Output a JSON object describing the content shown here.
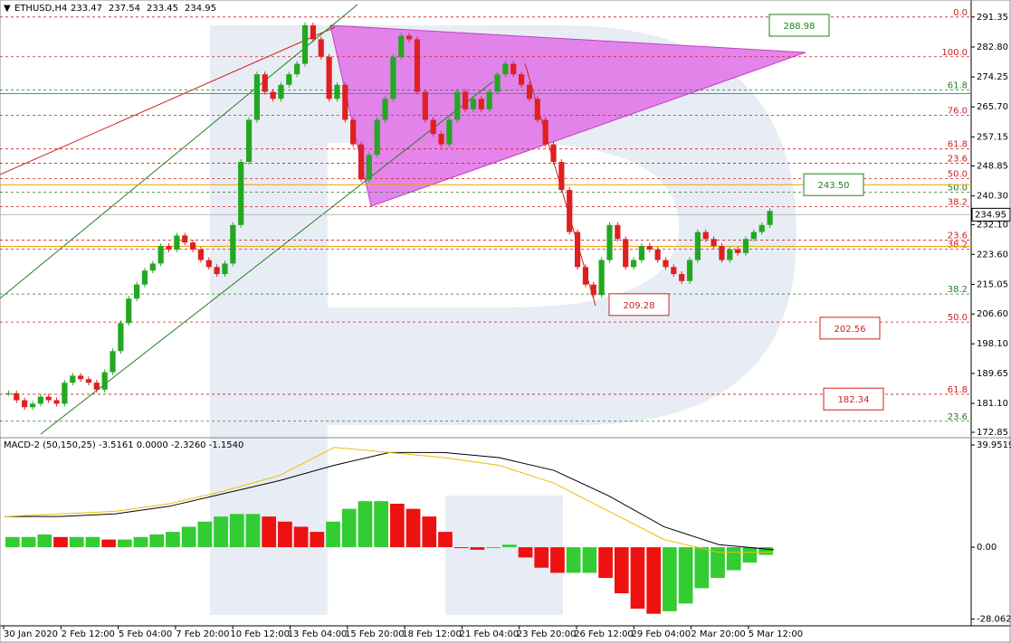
{
  "chart_data": {
    "type": "candlestick",
    "title": "ETHUSD,H4",
    "ohlc": [
      233.47,
      237.54,
      233.45,
      234.95
    ],
    "up_color": "#22a822",
    "down_color": "#e02020",
    "close": [
      184,
      182,
      180,
      181,
      183,
      182,
      181,
      187,
      189,
      188,
      187,
      185,
      190,
      196,
      204,
      211,
      215,
      219,
      221,
      226,
      225,
      229,
      227,
      225,
      222,
      220,
      218,
      221,
      232,
      250,
      262,
      275,
      270,
      268,
      272,
      275,
      278,
      289,
      285,
      280,
      268,
      272,
      262,
      255,
      245,
      252,
      262,
      268,
      280,
      286,
      285,
      270,
      262,
      258,
      255,
      262,
      270,
      265,
      268,
      265,
      270,
      275,
      278,
      275,
      272,
      268,
      262,
      255,
      250,
      242,
      230,
      220,
      215,
      212,
      222,
      232,
      228,
      220,
      222,
      226,
      225,
      222,
      220,
      218,
      216,
      222,
      230,
      228,
      226,
      222,
      225,
      224,
      228,
      230,
      232,
      236
    ],
    "ylim": [
      171.3,
      296.2
    ],
    "yticks": [
      {
        "value": 291.35,
        "label": "291.35"
      },
      {
        "value": 282.8,
        "label": "282.80"
      },
      {
        "value": 274.25,
        "label": "274.25"
      },
      {
        "value": 265.7,
        "label": "265.70"
      },
      {
        "value": 257.15,
        "label": "257.15"
      },
      {
        "value": 248.85,
        "label": "248.85"
      },
      {
        "value": 240.3,
        "label": "240.30"
      },
      {
        "value": 232.1,
        "label": "232.10"
      },
      {
        "value": 223.6,
        "label": "223.60"
      },
      {
        "value": 215.05,
        "label": "215.05"
      },
      {
        "value": 206.6,
        "label": "206.60"
      },
      {
        "value": 198.1,
        "label": "198.10"
      },
      {
        "value": 189.65,
        "label": "189.65"
      },
      {
        "value": 181.1,
        "label": "181.10"
      },
      {
        "value": 172.85,
        "label": "172.85"
      }
    ],
    "x_labels": [
      "30 Jan 2020",
      "2 Feb 12:00",
      "5 Feb 04:00",
      "7 Feb 20:00",
      "10 Feb 12:00",
      "13 Feb 04:00",
      "15 Feb 20:00",
      "18 Feb 12:00",
      "21 Feb 04:00",
      "23 Feb 20:00",
      "26 Feb 12:00",
      "29 Feb 04:00",
      "2 Mar 20:00",
      "5 Mar 12:00"
    ],
    "fib_levels": [
      {
        "label": "0.0",
        "price": 291.35,
        "color": "#d02020"
      },
      {
        "label": "100.0",
        "price": 280.0,
        "color": "#d02020"
      },
      {
        "label": "61.8",
        "price": 270.5,
        "color": "#208020"
      },
      {
        "label": "76.0",
        "price": 263.3,
        "color": "#d02020"
      },
      {
        "label": "61.8",
        "price": 253.7,
        "color": "#d02020"
      },
      {
        "label": "23.6",
        "price": 249.6,
        "color": "#d02020"
      },
      {
        "label": "50.0",
        "price": 245.2,
        "color": "#d02020"
      },
      {
        "label": "50.0",
        "price": 241.4,
        "color": "#208020"
      },
      {
        "label": "38.2",
        "price": 237.2,
        "color": "#d02020"
      },
      {
        "label": "23.6",
        "price": 227.7,
        "color": "#d02020"
      },
      {
        "label": "38.2",
        "price": 225.1,
        "color": "#d02020"
      },
      {
        "label": "38.2",
        "price": 212.3,
        "color": "#208020"
      },
      {
        "label": "50.0",
        "price": 204.3,
        "color": "#d02020"
      },
      {
        "label": "61.8",
        "price": 183.7,
        "color": "#d02020"
      },
      {
        "label": "23.6",
        "price": 176.0,
        "color": "#208020"
      }
    ],
    "targets": [
      {
        "label": "288.98",
        "value": 288.98,
        "color": "#208020"
      },
      {
        "label": "243.50",
        "value": 243.5,
        "color": "#208020"
      },
      {
        "label": "209.28",
        "value": 209.28,
        "color": "#d02020"
      },
      {
        "label": "202.56",
        "value": 202.56,
        "color": "#d02020"
      },
      {
        "label": "182.34",
        "value": 182.34,
        "color": "#d02020"
      }
    ],
    "lines": [
      {
        "price": 269.5,
        "color": "#20a0c0"
      },
      {
        "price": 243.5,
        "color": "#f0a000"
      },
      {
        "price": 225.9,
        "color": "#f0a000"
      },
      {
        "price": 234.95,
        "color": "#bbbbbb"
      }
    ],
    "current_price": {
      "value": 234.95,
      "label": "234.95"
    },
    "macd": {
      "title": "MACD-2 (50,150,25) -3.5161 0.0000 -2.3260 -1.1540",
      "ylim": [
        -30.7,
        42.78
      ],
      "yticks": [
        {
          "value": 39.9519,
          "label": "39.9519"
        },
        {
          "value": 0,
          "label": "0.00"
        },
        {
          "value": -28.0622,
          "label": "-28.0622"
        }
      ],
      "histogram": [
        4,
        4,
        5,
        4,
        4,
        4,
        3,
        3,
        4,
        5,
        6,
        8,
        10,
        12,
        13,
        13,
        12,
        10,
        8,
        6,
        10,
        15,
        18,
        18,
        17,
        15,
        12,
        6,
        0,
        -1,
        0,
        1,
        -4,
        -8,
        -10,
        -10,
        -10,
        -12,
        -18,
        -24,
        -26,
        -25,
        -22,
        -16,
        -12,
        -9,
        -6,
        -3
      ],
      "series": [
        {
          "color": "#000000",
          "values": [
            12,
            12,
            13,
            16,
            21,
            26,
            32,
            37,
            37,
            35,
            30,
            20,
            8,
            1,
            -1
          ]
        },
        {
          "color": "#e8c000",
          "values": [
            12,
            13,
            14,
            17,
            22,
            28,
            39,
            37,
            35,
            32,
            25,
            14,
            3,
            -2,
            -2
          ]
        }
      ]
    }
  }
}
